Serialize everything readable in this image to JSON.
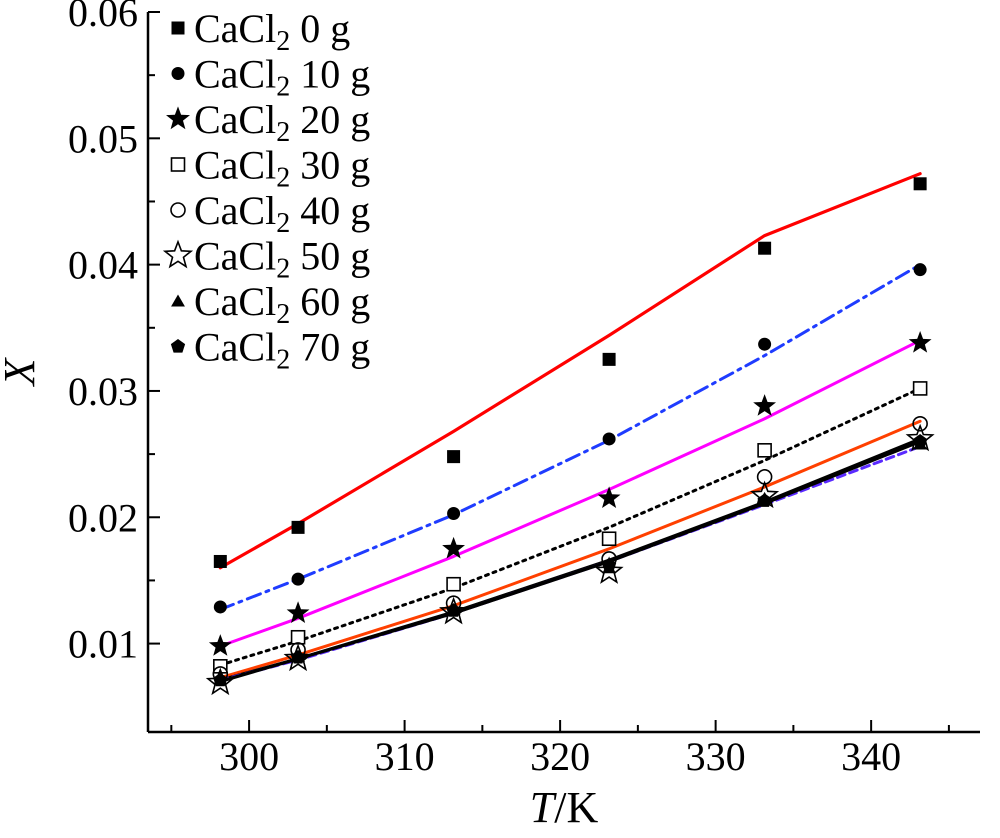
{
  "chart_data": {
    "type": "scatter",
    "title": "",
    "xlabel": {
      "italic": "T",
      "rest": "/K"
    },
    "ylabel": "X",
    "xlim": [
      293.5,
      347
    ],
    "ylim": [
      0.003,
      0.06
    ],
    "xticks": [
      300,
      310,
      320,
      330,
      340
    ],
    "yticks": [
      0.01,
      0.02,
      0.03,
      0.04,
      0.05,
      0.06
    ],
    "xtick_labels": [
      "300",
      "310",
      "320",
      "330",
      "340"
    ],
    "ytick_labels": [
      "0.01",
      "0.02",
      "0.03",
      "0.04",
      "0.05",
      "0.06"
    ],
    "grid": false,
    "legend_position": "top-left",
    "x": [
      298.15,
      303.15,
      313.15,
      323.15,
      333.15,
      343.15
    ],
    "series": [
      {
        "name": "CaCl2 0 g",
        "legend": {
          "base": "CaCl",
          "sub": "2",
          "tail": " 0 g"
        },
        "marker": "square-filled",
        "line_color": "#ff0000",
        "line_style": "solid",
        "values": [
          0.0165,
          0.0192,
          0.0248,
          0.0325,
          0.0413,
          0.0464
        ],
        "fit": [
          0.016,
          0.0195,
          0.0268,
          0.0344,
          0.0423,
          0.0472
        ]
      },
      {
        "name": "CaCl2 10 g",
        "legend": {
          "base": "CaCl",
          "sub": "2",
          "tail": " 10 g"
        },
        "marker": "circle-filled",
        "line_color": "#1f3cff",
        "line_style": "dashdot",
        "values": [
          0.0129,
          0.0151,
          0.0203,
          0.0262,
          0.0337,
          0.0396
        ],
        "fit": [
          0.0127,
          0.0151,
          0.0202,
          0.0261,
          0.0328,
          0.04
        ]
      },
      {
        "name": "CaCl2 20 g",
        "legend": {
          "base": "CaCl",
          "sub": "2",
          "tail": " 20 g"
        },
        "marker": "star-filled",
        "line_color": "#ff00ff",
        "line_style": "solid",
        "values": [
          0.0098,
          0.0124,
          0.0175,
          0.0215,
          0.0288,
          0.0338
        ],
        "fit": [
          0.0098,
          0.012,
          0.0169,
          0.0222,
          0.0278,
          0.034
        ]
      },
      {
        "name": "CaCl2 30 g",
        "legend": {
          "base": "CaCl",
          "sub": "2",
          "tail": " 30 g"
        },
        "marker": "square-open",
        "line_color": "#000000",
        "line_style": "dotted",
        "values": [
          0.0082,
          0.0105,
          0.0147,
          0.0183,
          0.0253,
          0.0302
        ],
        "fit": [
          0.0083,
          0.0102,
          0.0144,
          0.0192,
          0.0245,
          0.0302
        ]
      },
      {
        "name": "CaCl2 40 g",
        "legend": {
          "base": "CaCl",
          "sub": "2",
          "tail": " 40 g"
        },
        "marker": "circle-open",
        "line_color": "#ff4000",
        "line_style": "solid",
        "values": [
          0.0076,
          0.0095,
          0.0132,
          0.0167,
          0.0232,
          0.0274
        ],
        "fit": [
          0.0073,
          0.0091,
          0.013,
          0.0175,
          0.0224,
          0.0276
        ]
      },
      {
        "name": "CaCl2 50 g",
        "legend": {
          "base": "CaCl",
          "sub": "2",
          "tail": " 50 g"
        },
        "marker": "star-open",
        "line_color": "#000000",
        "line_style": "solid",
        "values": [
          0.0069,
          0.0088,
          0.0125,
          0.0157,
          0.0217,
          0.0262
        ],
        "fit": [
          0.0071,
          0.0088,
          0.0125,
          0.0166,
          0.0212,
          0.0262
        ]
      },
      {
        "name": "CaCl2 60 g",
        "legend": {
          "base": "CaCl",
          "sub": "2",
          "tail": " 60 g"
        },
        "marker": "triangle-filled",
        "line_color": "#5a2aff",
        "line_style": "dashed",
        "values": [
          0.0072,
          0.009,
          0.0127,
          0.016,
          0.0215,
          0.0258
        ],
        "fit": [
          0.0071,
          0.0087,
          0.0124,
          0.0165,
          0.021,
          0.0256
        ]
      },
      {
        "name": "CaCl2 70 g",
        "legend": {
          "base": "CaCl",
          "sub": "2",
          "tail": " 70 g"
        },
        "marker": "pentagon-filled",
        "line_color": "#000000",
        "line_style": "solid",
        "values": [
          0.0071,
          0.0089,
          0.0126,
          0.0162,
          0.0213,
          0.026
        ],
        "fit": [
          0.007,
          0.0088,
          0.0124,
          0.0165,
          0.0211,
          0.026
        ]
      }
    ]
  }
}
